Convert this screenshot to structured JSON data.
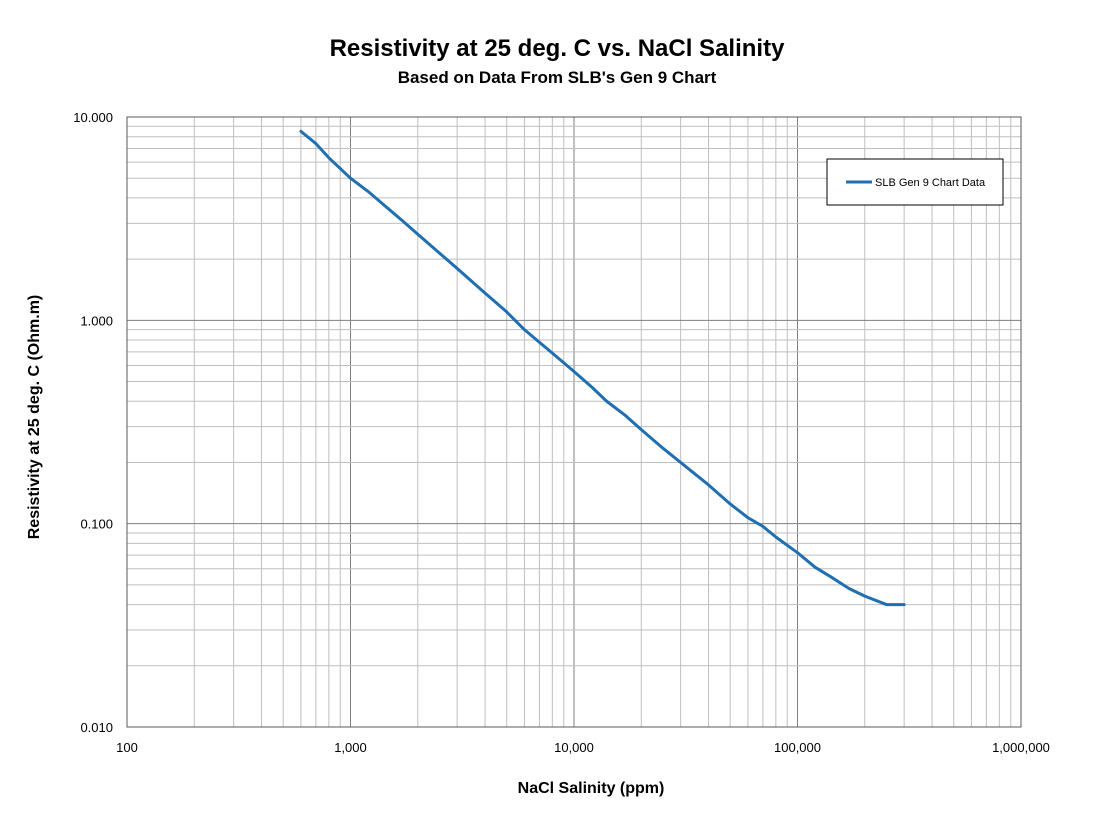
{
  "chart_data": {
    "type": "line",
    "title": "Resistivity at 25 deg. C vs. NaCl Salinity",
    "subtitle": "Based on Data From SLB's Gen 9 Chart",
    "xlabel": "NaCl Salinity (ppm)",
    "ylabel": "Resistivity at 25 deg. C (Ohm.m)",
    "x_scale": "log",
    "y_scale": "log",
    "xlim": [
      100,
      1000000
    ],
    "ylim": [
      0.01,
      10
    ],
    "x_ticks": [
      {
        "value": 100,
        "label": "100"
      },
      {
        "value": 1000,
        "label": "1,000"
      },
      {
        "value": 10000,
        "label": "10,000"
      },
      {
        "value": 100000,
        "label": "100,000"
      },
      {
        "value": 1000000,
        "label": "1,000,000"
      }
    ],
    "y_ticks": [
      {
        "value": 0.01,
        "label": "0.010"
      },
      {
        "value": 0.1,
        "label": "0.100"
      },
      {
        "value": 1,
        "label": "1.000"
      },
      {
        "value": 10,
        "label": "10.000"
      }
    ],
    "grid": true,
    "legend_position": "top-right",
    "series": [
      {
        "name": "SLB Gen 9 Chart Data",
        "color": "#1f6fb2",
        "x": [
          600,
          700,
          800,
          1000,
          1200,
          1700,
          2000,
          3000,
          4000,
          5000,
          6000,
          7000,
          8000,
          10000,
          12000,
          14000,
          17000,
          20000,
          25000,
          30000,
          40000,
          50000,
          60000,
          70000,
          80000,
          100000,
          120000,
          140000,
          170000,
          200000,
          250000,
          300000
        ],
        "y": [
          8.5,
          7.4,
          6.3,
          5.0,
          4.3,
          3.1,
          2.65,
          1.8,
          1.36,
          1.1,
          0.9,
          0.78,
          0.69,
          0.56,
          0.47,
          0.4,
          0.34,
          0.29,
          0.235,
          0.2,
          0.155,
          0.125,
          0.107,
          0.097,
          0.086,
          0.072,
          0.061,
          0.055,
          0.048,
          0.044,
          0.04,
          0.04
        ]
      }
    ]
  }
}
